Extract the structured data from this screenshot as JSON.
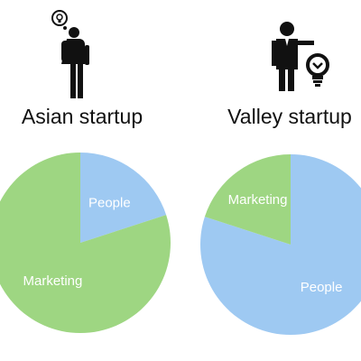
{
  "panels": [
    {
      "title": "Asian startup",
      "icon": "backpacker-with-lightbulb-icon"
    },
    {
      "title": "Valley startup",
      "icon": "businessman-with-lightbulb-icon"
    }
  ],
  "colors": {
    "people": "#9ec9f2",
    "marketing": "#9ed682",
    "label": "#ffffff"
  },
  "chart_data": [
    {
      "type": "pie",
      "title": "Asian startup",
      "slices": [
        {
          "label": "People",
          "value": 20,
          "color": "#9ec9f2"
        },
        {
          "label": "Marketing",
          "value": 80,
          "color": "#9ed682"
        }
      ]
    },
    {
      "type": "pie",
      "title": "Valley startup",
      "slices": [
        {
          "label": "People",
          "value": 80,
          "color": "#9ec9f2"
        },
        {
          "label": "Marketing",
          "value": 20,
          "color": "#9ed682"
        }
      ]
    }
  ]
}
